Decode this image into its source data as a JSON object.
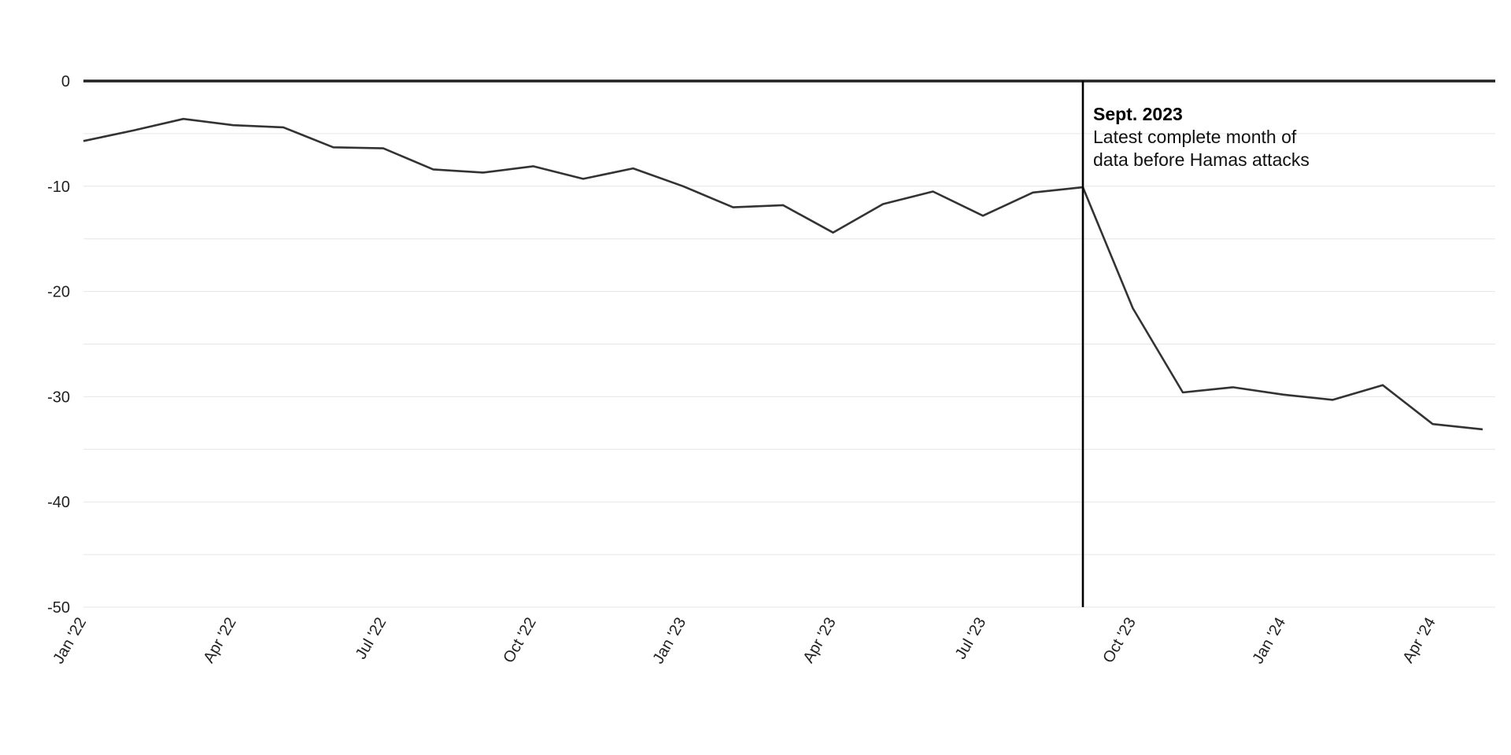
{
  "chart_data": {
    "type": "line",
    "title": "",
    "xlabel": "",
    "ylabel": "",
    "ylim": [
      -50,
      0
    ],
    "yticks": [
      0,
      -10,
      -20,
      -30,
      -40,
      -50
    ],
    "grid": true,
    "x": [
      "2022-01",
      "2022-02",
      "2022-03",
      "2022-04",
      "2022-05",
      "2022-06",
      "2022-07",
      "2022-08",
      "2022-09",
      "2022-10",
      "2022-11",
      "2022-12",
      "2023-01",
      "2023-02",
      "2023-03",
      "2023-04",
      "2023-05",
      "2023-06",
      "2023-07",
      "2023-08",
      "2023-09",
      "2023-10",
      "2023-11",
      "2023-12",
      "2024-01",
      "2024-02",
      "2024-03",
      "2024-04",
      "2024-05"
    ],
    "xtick_labels": [
      {
        "x": "2022-01",
        "label": "Jan '22"
      },
      {
        "x": "2022-04",
        "label": "Apr '22"
      },
      {
        "x": "2022-07",
        "label": "Jul '22"
      },
      {
        "x": "2022-10",
        "label": "Oct '22"
      },
      {
        "x": "2023-01",
        "label": "Jan '23"
      },
      {
        "x": "2023-04",
        "label": "Apr '23"
      },
      {
        "x": "2023-07",
        "label": "Jul '23"
      },
      {
        "x": "2023-10",
        "label": "Oct '23"
      },
      {
        "x": "2024-01",
        "label": "Jan '24"
      },
      {
        "x": "2024-04",
        "label": "Apr '24"
      }
    ],
    "series": [
      {
        "values": [
          -5.7,
          -4.7,
          -3.6,
          -4.2,
          -4.4,
          -6.3,
          -6.4,
          -8.4,
          -8.7,
          -8.1,
          -9.3,
          -8.3,
          -10.0,
          -12.0,
          -11.8,
          -14.4,
          -11.7,
          -10.5,
          -12.8,
          -10.6,
          -10.1,
          -21.6,
          -29.6,
          -29.1,
          -29.8,
          -30.3,
          -28.9,
          -32.6,
          -33.1
        ]
      }
    ],
    "annotation": {
      "x": "2023-09",
      "title": "Sept. 2023",
      "lines": [
        "Latest complete month of",
        "data before Hamas attacks"
      ]
    },
    "colors": {
      "line": "#333333",
      "zero_line": "#222222",
      "marker_line": "#000000",
      "grid": "#e6e6e6"
    }
  }
}
